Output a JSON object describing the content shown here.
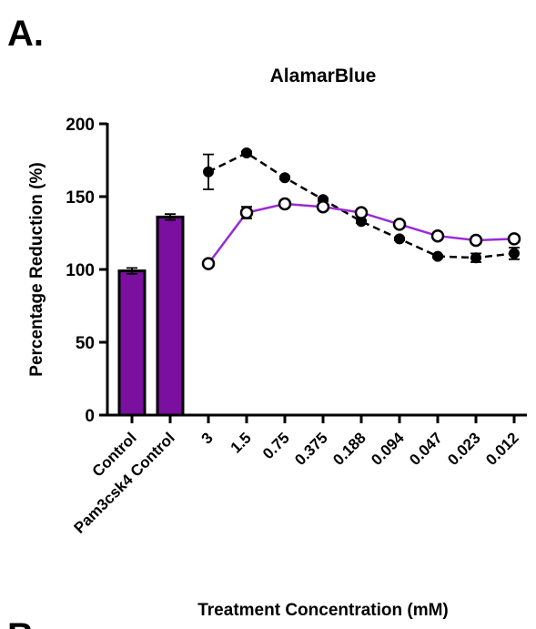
{
  "panel_label": "A.",
  "panel_label_next": "B",
  "chart_data": {
    "type": "combo",
    "title": "AlamarBlue",
    "x_label": "Treatment Concentration (mM)",
    "y_label": "Percentage Reduction (%)",
    "categories": [
      "Control",
      "Pam3csk4 Control",
      "3",
      "1.5",
      "0.75",
      "0.375",
      "0.188",
      "0.094",
      "0.047",
      "0.023",
      "0.012"
    ],
    "ylim": [
      0,
      200
    ],
    "yticks": [
      0,
      50,
      100,
      150,
      200
    ],
    "series": [
      {
        "kind": "bar",
        "color": "#7a0fa0",
        "values": [
          99,
          136,
          null,
          null,
          null,
          null,
          null,
          null,
          null,
          null,
          null
        ],
        "errors": [
          2,
          2,
          null,
          null,
          null,
          null,
          null,
          null,
          null,
          null,
          null
        ]
      },
      {
        "kind": "line",
        "dashed": true,
        "marker": "filled",
        "color": "#000000",
        "values": [
          null,
          null,
          167,
          180,
          163,
          148,
          133,
          121,
          109,
          108,
          111
        ],
        "errors": [
          null,
          null,
          12,
          1,
          1,
          1,
          1,
          1,
          1,
          3,
          4
        ]
      },
      {
        "kind": "line",
        "dashed": false,
        "marker": "open",
        "color": "#9b2ad6",
        "values": [
          null,
          null,
          104,
          139,
          145,
          143,
          139,
          131,
          123,
          120,
          121
        ],
        "errors": [
          null,
          null,
          1,
          4,
          1,
          1,
          1,
          1,
          1,
          1,
          1
        ]
      }
    ]
  }
}
